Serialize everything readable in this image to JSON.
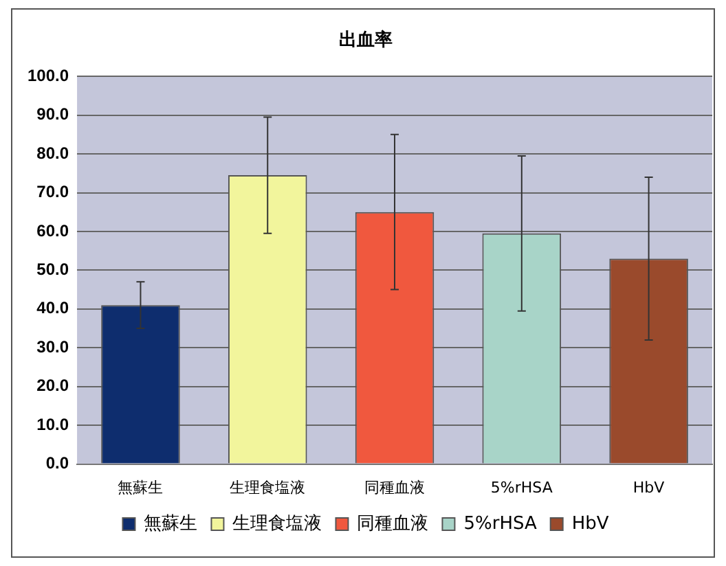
{
  "chart_data": {
    "type": "bar",
    "title": "出血率",
    "categories": [
      "無蘇生",
      "生理食塩液",
      "同種血液",
      "5%rHSA",
      "HbV"
    ],
    "series": [
      {
        "name": "無蘇生",
        "color": "#0e2d6e",
        "values": [
          41.0,
          null,
          null,
          null,
          null
        ],
        "errors": [
          6,
          null,
          null,
          null,
          null
        ]
      },
      {
        "name": "生理食塩液",
        "color": "#f2f59c",
        "values": [
          null,
          74.5,
          null,
          null,
          null
        ],
        "errors": [
          null,
          15,
          null,
          null,
          null
        ]
      },
      {
        "name": "同種血液",
        "color": "#f0583e",
        "values": [
          null,
          null,
          65.0,
          null,
          null
        ],
        "errors": [
          null,
          null,
          20,
          null,
          null
        ]
      },
      {
        "name": "5%rHSA",
        "color": "#a8d4c8",
        "values": [
          null,
          null,
          null,
          59.5,
          null
        ],
        "errors": [
          null,
          null,
          null,
          20,
          null
        ]
      },
      {
        "name": "HbV",
        "color": "#9a4a2c",
        "values": [
          null,
          null,
          null,
          null,
          53.0
        ],
        "errors": [
          null,
          null,
          null,
          null,
          21
        ]
      }
    ],
    "ylim": [
      0,
      100
    ],
    "yticks": [
      {
        "value": 0,
        "label": "0.0"
      },
      {
        "value": 10,
        "label": "10.0"
      },
      {
        "value": 20,
        "label": "20.0"
      },
      {
        "value": 30,
        "label": "30.0"
      },
      {
        "value": 40,
        "label": "40.0"
      },
      {
        "value": 50,
        "label": "50.0"
      },
      {
        "value": 60,
        "label": "60.0"
      },
      {
        "value": 70,
        "label": "70.0"
      },
      {
        "value": 80,
        "label": "80.0"
      },
      {
        "value": 90,
        "label": "90.0"
      },
      {
        "value": 100,
        "label": "100.0"
      }
    ],
    "grid": "y",
    "legend": "bottom"
  }
}
